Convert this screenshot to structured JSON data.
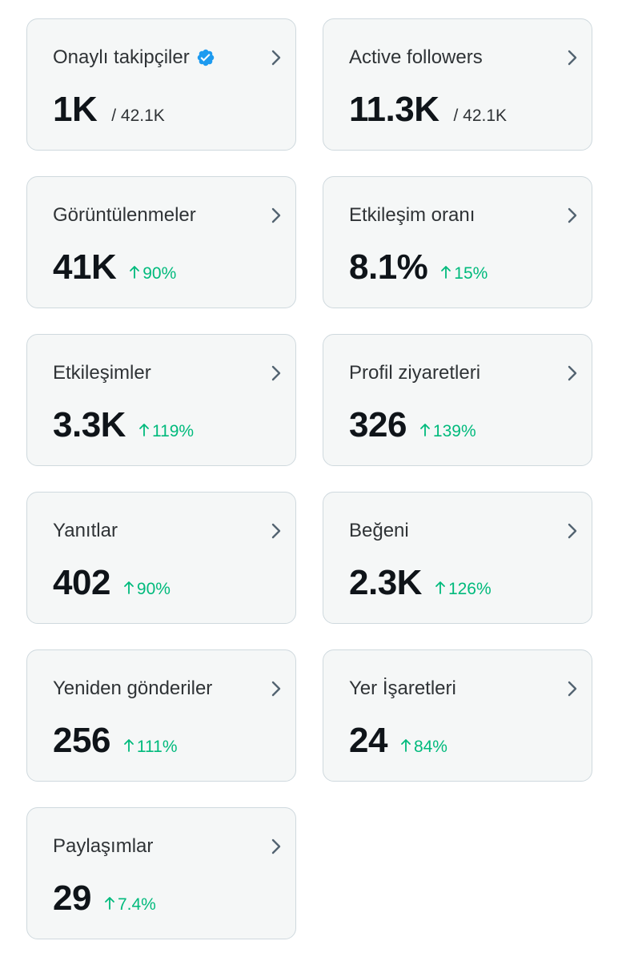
{
  "cards": [
    {
      "title": "Onaylı takipçiler",
      "value": "1K",
      "subtotal": "/ 42.1K",
      "change": "",
      "verified": true
    },
    {
      "title": "Active followers",
      "value": "11.3K",
      "subtotal": "/ 42.1K",
      "change": "",
      "verified": false
    },
    {
      "title": "Görüntülenmeler",
      "value": "41K",
      "subtotal": "",
      "change": "90%",
      "verified": false
    },
    {
      "title": "Etkileşim oranı",
      "value": "8.1%",
      "subtotal": "",
      "change": "15%",
      "verified": false
    },
    {
      "title": "Etkileşimler",
      "value": "3.3K",
      "subtotal": "",
      "change": "119%",
      "verified": false
    },
    {
      "title": "Profil ziyaretleri",
      "value": "326",
      "subtotal": "",
      "change": "139%",
      "verified": false
    },
    {
      "title": "Yanıtlar",
      "value": "402",
      "subtotal": "",
      "change": "90%",
      "verified": false
    },
    {
      "title": "Beğeni",
      "value": "2.3K",
      "subtotal": "",
      "change": "126%",
      "verified": false
    },
    {
      "title": "Yeniden gönderiler",
      "value": "256",
      "subtotal": "",
      "change": "111%",
      "verified": false
    },
    {
      "title": "Yer İşaretleri",
      "value": "24",
      "subtotal": "",
      "change": "84%",
      "verified": false
    },
    {
      "title": "Paylaşımlar",
      "value": "29",
      "subtotal": "",
      "change": "7.4%",
      "verified": false
    }
  ],
  "colors": {
    "card_background": "#f5f7f7",
    "card_border": "#cfd9de",
    "positive_change": "#00ba7c",
    "verified_badge": "#1d9bf0",
    "chevron": "#536471"
  },
  "icons": {
    "verified": "verified-badge-icon",
    "chevron": "chevron-right-icon",
    "change": "arrow-up-icon"
  }
}
